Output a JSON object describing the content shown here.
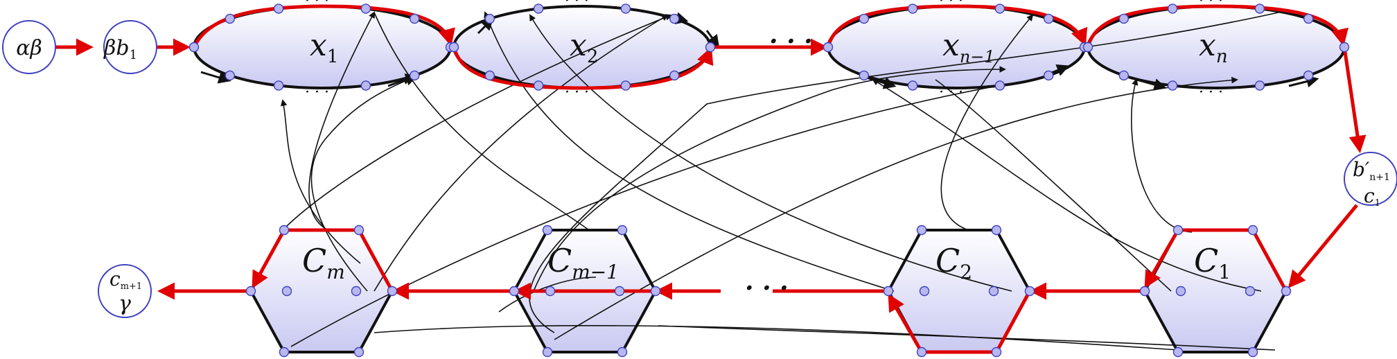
{
  "labels": {
    "alpha_beta": "αβ",
    "beta_b1": "βb",
    "beta_b1_sub": "1",
    "x1": "x",
    "x1_sub": "1",
    "x2": "x",
    "x2_sub": "2",
    "xn1": "x",
    "xn1_sub": "n−1",
    "xn": "x",
    "xn_sub": "n",
    "bprime": "b′",
    "bprime_sub": "n+1",
    "c1_small": "c",
    "c1_small_sub": "1",
    "Cm": "C",
    "Cm_sub": "m",
    "Cm1": "C",
    "Cm1_sub": "m−1",
    "C2": "C",
    "C2_sub": "2",
    "C1": "C",
    "C1_sub": "1",
    "cm1": "c",
    "cm1_sub": "m+1",
    "gamma": "γ",
    "dots": "· · ·"
  },
  "colors": {
    "path": "#e00000",
    "edge": "#111111",
    "node_fill": "#e3e3f6",
    "node_stroke": "#4040c0"
  }
}
